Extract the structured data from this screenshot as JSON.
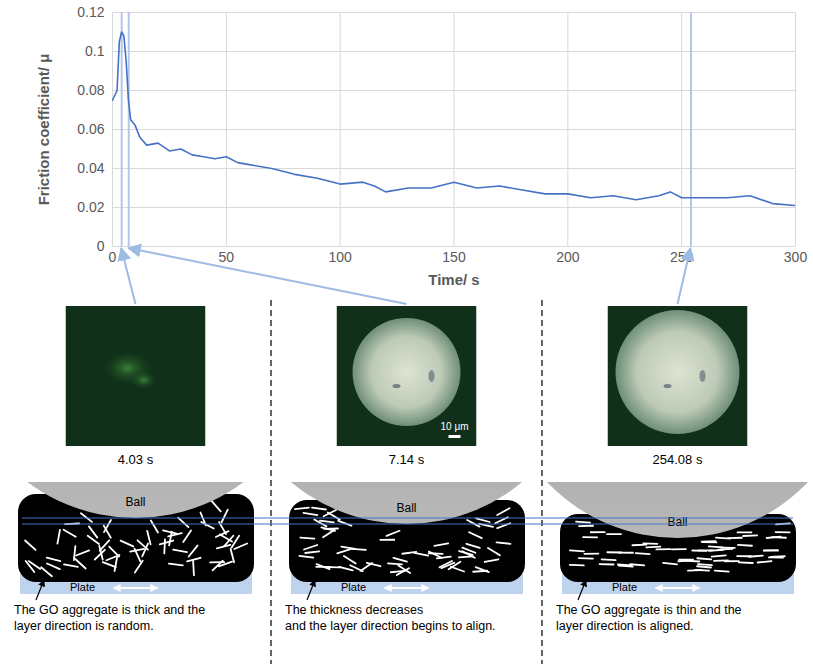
{
  "chart_data": {
    "type": "line",
    "x_label": "Time/ s",
    "y_label": "Friction coefficient/ μ",
    "x": [
      0,
      2,
      3,
      4,
      5,
      6,
      7,
      8,
      10,
      12,
      15,
      20,
      25,
      30,
      35,
      40,
      45,
      50,
      55,
      60,
      70,
      80,
      90,
      100,
      110,
      115,
      120,
      130,
      140,
      150,
      160,
      170,
      180,
      190,
      200,
      210,
      220,
      230,
      240,
      245,
      250,
      260,
      270,
      280,
      290,
      300
    ],
    "values": [
      0.075,
      0.08,
      0.105,
      0.11,
      0.108,
      0.095,
      0.075,
      0.065,
      0.062,
      0.056,
      0.052,
      0.053,
      0.049,
      0.05,
      0.047,
      0.046,
      0.045,
      0.046,
      0.043,
      0.042,
      0.04,
      0.037,
      0.035,
      0.032,
      0.033,
      0.031,
      0.028,
      0.03,
      0.03,
      0.033,
      0.03,
      0.031,
      0.029,
      0.027,
      0.027,
      0.025,
      0.026,
      0.024,
      0.026,
      0.028,
      0.025,
      0.025,
      0.025,
      0.026,
      0.022,
      0.021
    ],
    "color": "#4472c4",
    "xlim": [
      0,
      300
    ],
    "ylim": [
      0,
      0.12
    ],
    "xticks": [
      0,
      50,
      100,
      150,
      200,
      250,
      300
    ],
    "yticks": [
      0,
      0.02,
      0.04,
      0.06,
      0.08,
      0.1,
      0.12
    ],
    "grid": true,
    "marked_times": [
      4.03,
      7.14,
      254.08
    ]
  },
  "panels": [
    {
      "time_label": "4.03 s",
      "caption_lines": [
        "The GO aggregate is thick and the",
        "layer direction is random."
      ]
    },
    {
      "time_label": "7.14 s",
      "caption_lines": [
        "The thickness decreases",
        "and the layer direction begins to align."
      ]
    },
    {
      "time_label": "254.08 s",
      "caption_lines": [
        "The GO aggregate is thin and the",
        "layer direction is aligned."
      ]
    }
  ],
  "scale_bar_label": "10 μm",
  "ball_label": "Ball",
  "plate_label": "Plate"
}
